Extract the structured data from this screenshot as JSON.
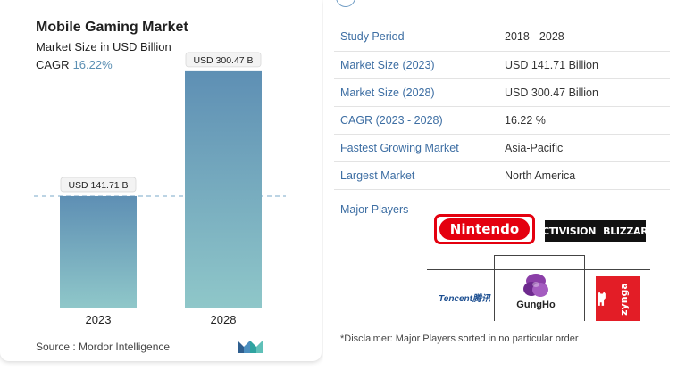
{
  "left_card": {
    "title": "Mobile Gaming Market",
    "subtitle": "Market Size in USD Billion",
    "cagr_label": "CAGR",
    "cagr_value": "16.22%",
    "source": "Source : Mordor Intelligence",
    "logo_icon": "mordor-intelligence-logo-icon"
  },
  "chart_data": {
    "type": "bar",
    "categories": [
      "2023",
      "2028"
    ],
    "values": [
      141.71,
      300.47
    ],
    "data_labels": [
      "USD 141.71 B",
      "USD 300.47 B"
    ],
    "title": "Mobile Gaming Market",
    "xlabel": "",
    "ylabel": "",
    "ylim": [
      0,
      340
    ],
    "grid": false,
    "reference_line": "dashed line at 2023 value",
    "colors": {
      "bar_top": "#5e8fb4",
      "bar_bottom": "#8fc7c9",
      "ref_line": "#7aa8c9"
    }
  },
  "info_table": {
    "rows": [
      {
        "label": "Study Period",
        "value": "2018 - 2028"
      },
      {
        "label": "Market Size (2023)",
        "value": "USD 141.71 Billion"
      },
      {
        "label": "Market Size (2028)",
        "value": "USD 300.47 Billion"
      },
      {
        "label": "CAGR (2023 - 2028)",
        "value": "16.22 %"
      },
      {
        "label": "Fastest Growing Market",
        "value": "Asia-Pacific"
      },
      {
        "label": "Largest Market",
        "value": "North America"
      }
    ]
  },
  "major_players": {
    "label": "Major Players",
    "logos": {
      "nintendo": "Nintendo",
      "activision_left": "ACTIVISION",
      "activision_right": "BLIZZARD",
      "tencent": "Tencent腾讯",
      "gungho": "GungHo",
      "zynga": "zynga"
    }
  },
  "disclaimer": "*Disclaimer: Major Players sorted in no particular order",
  "colors": {
    "accent_blue": "#3d6ea3",
    "nintendo_red": "#e4000f",
    "zynga_red": "#e31d26",
    "gungho_purple": "#7b3a9c"
  }
}
